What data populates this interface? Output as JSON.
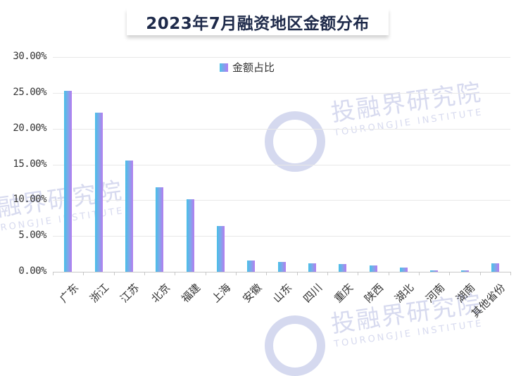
{
  "title": "2023年7月融资地区金额分布",
  "legend": {
    "label": "金额占比",
    "icon": "gradient-square-icon"
  },
  "watermark": {
    "cn": "投融界研究院",
    "en": "TOURONGJIE INSTITUTE"
  },
  "y_ticks": [
    "30.00%",
    "25.00%",
    "20.00%",
    "15.00%",
    "10.00%",
    "5.00%",
    "0.00%"
  ],
  "colors": {
    "bar_left": "#46c0e8",
    "bar_right": "#b67cf0",
    "title": "#1e2a4a"
  },
  "chart_data": {
    "type": "bar",
    "title": "2023年7月融资地区金额分布",
    "xlabel": "",
    "ylabel": "",
    "ylim": [
      0,
      30
    ],
    "y_tick_format": "percent_2dp",
    "grid": true,
    "legend_position": "top-center",
    "categories": [
      "广东",
      "浙江",
      "江苏",
      "北京",
      "福建",
      "上海",
      "安徽",
      "山东",
      "四川",
      "重庆",
      "陕西",
      "湖北",
      "河南",
      "湖南",
      "其他省份"
    ],
    "series": [
      {
        "name": "金额占比",
        "values": [
          25.3,
          22.2,
          15.5,
          11.8,
          10.1,
          6.4,
          1.6,
          1.4,
          1.2,
          1.1,
          0.9,
          0.6,
          0.2,
          0.2,
          1.2
        ]
      }
    ]
  }
}
